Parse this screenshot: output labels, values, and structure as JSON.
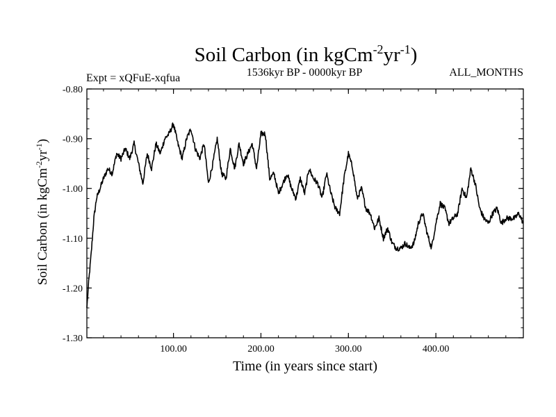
{
  "chart_data": {
    "type": "line",
    "title_main": "Soil Carbon (in kgCm",
    "title_sup1": "-2",
    "title_mid": "yr",
    "title_sup2": "-1",
    "title_end": ")",
    "subtitle_left": "Expt = xQFuE-xqfua",
    "subtitle_center": "1536kyr BP - 0000kyr BP",
    "subtitle_right": "ALL_MONTHS",
    "xlabel": "Time (in years since start)",
    "ylabel_main": "Soil Carbon (in kgCm",
    "ylabel_sup1": "-2",
    "ylabel_mid": "yr",
    "ylabel_sup2": "-1",
    "ylabel_end": ")",
    "xlim": [
      1,
      500
    ],
    "ylim": [
      -1.3,
      -0.8
    ],
    "x_ticks": [
      100,
      200,
      300,
      400
    ],
    "x_tick_labels": [
      "100.00",
      "200.00",
      "300.00",
      "400.00"
    ],
    "y_ticks": [
      -1.3,
      -1.2,
      -1.1,
      -1.0,
      -0.9,
      -0.8
    ],
    "y_tick_labels": [
      "-1.30",
      "-1.20",
      "-1.10",
      "-1.00",
      "-0.90",
      "-0.80"
    ],
    "series": [
      {
        "name": "Soil Carbon",
        "color": "#000000",
        "x": [
          1,
          3,
          6,
          9,
          12,
          16,
          20,
          25,
          30,
          35,
          40,
          45,
          50,
          55,
          60,
          65,
          70,
          75,
          80,
          85,
          90,
          95,
          100,
          105,
          110,
          115,
          120,
          125,
          130,
          135,
          140,
          145,
          150,
          155,
          160,
          165,
          170,
          175,
          180,
          185,
          190,
          195,
          200,
          205,
          210,
          215,
          220,
          225,
          230,
          235,
          240,
          245,
          250,
          255,
          260,
          265,
          270,
          275,
          280,
          285,
          290,
          295,
          300,
          305,
          310,
          315,
          320,
          325,
          330,
          335,
          340,
          345,
          350,
          355,
          360,
          365,
          370,
          375,
          380,
          385,
          390,
          395,
          400,
          405,
          410,
          415,
          420,
          425,
          430,
          435,
          440,
          445,
          450,
          455,
          460,
          465,
          470,
          475,
          480,
          485,
          490,
          495,
          500
        ],
        "values": [
          -1.24,
          -1.19,
          -1.13,
          -1.06,
          -1.02,
          -1.0,
          -0.98,
          -0.96,
          -0.97,
          -0.93,
          -0.94,
          -0.92,
          -0.94,
          -0.91,
          -0.95,
          -0.99,
          -0.93,
          -0.96,
          -0.91,
          -0.93,
          -0.9,
          -0.89,
          -0.87,
          -0.91,
          -0.94,
          -0.9,
          -0.88,
          -0.92,
          -0.94,
          -0.91,
          -0.99,
          -0.95,
          -0.9,
          -0.97,
          -0.98,
          -0.92,
          -0.96,
          -0.91,
          -0.95,
          -0.93,
          -0.91,
          -0.96,
          -0.89,
          -0.89,
          -0.98,
          -0.97,
          -1.01,
          -0.99,
          -0.97,
          -1.0,
          -1.02,
          -0.98,
          -1.01,
          -0.96,
          -0.98,
          -0.99,
          -1.02,
          -0.97,
          -1.01,
          -1.04,
          -1.05,
          -0.98,
          -0.93,
          -0.96,
          -1.02,
          -1.0,
          -1.04,
          -1.05,
          -1.08,
          -1.06,
          -1.1,
          -1.08,
          -1.11,
          -1.12,
          -1.12,
          -1.11,
          -1.12,
          -1.11,
          -1.07,
          -1.05,
          -1.09,
          -1.12,
          -1.07,
          -1.03,
          -1.04,
          -1.07,
          -1.06,
          -1.05,
          -1.0,
          -1.02,
          -0.96,
          -0.99,
          -1.04,
          -1.06,
          -1.07,
          -1.05,
          -1.04,
          -1.07,
          -1.06,
          -1.06,
          -1.06,
          -1.05,
          -1.07
        ]
      }
    ]
  }
}
